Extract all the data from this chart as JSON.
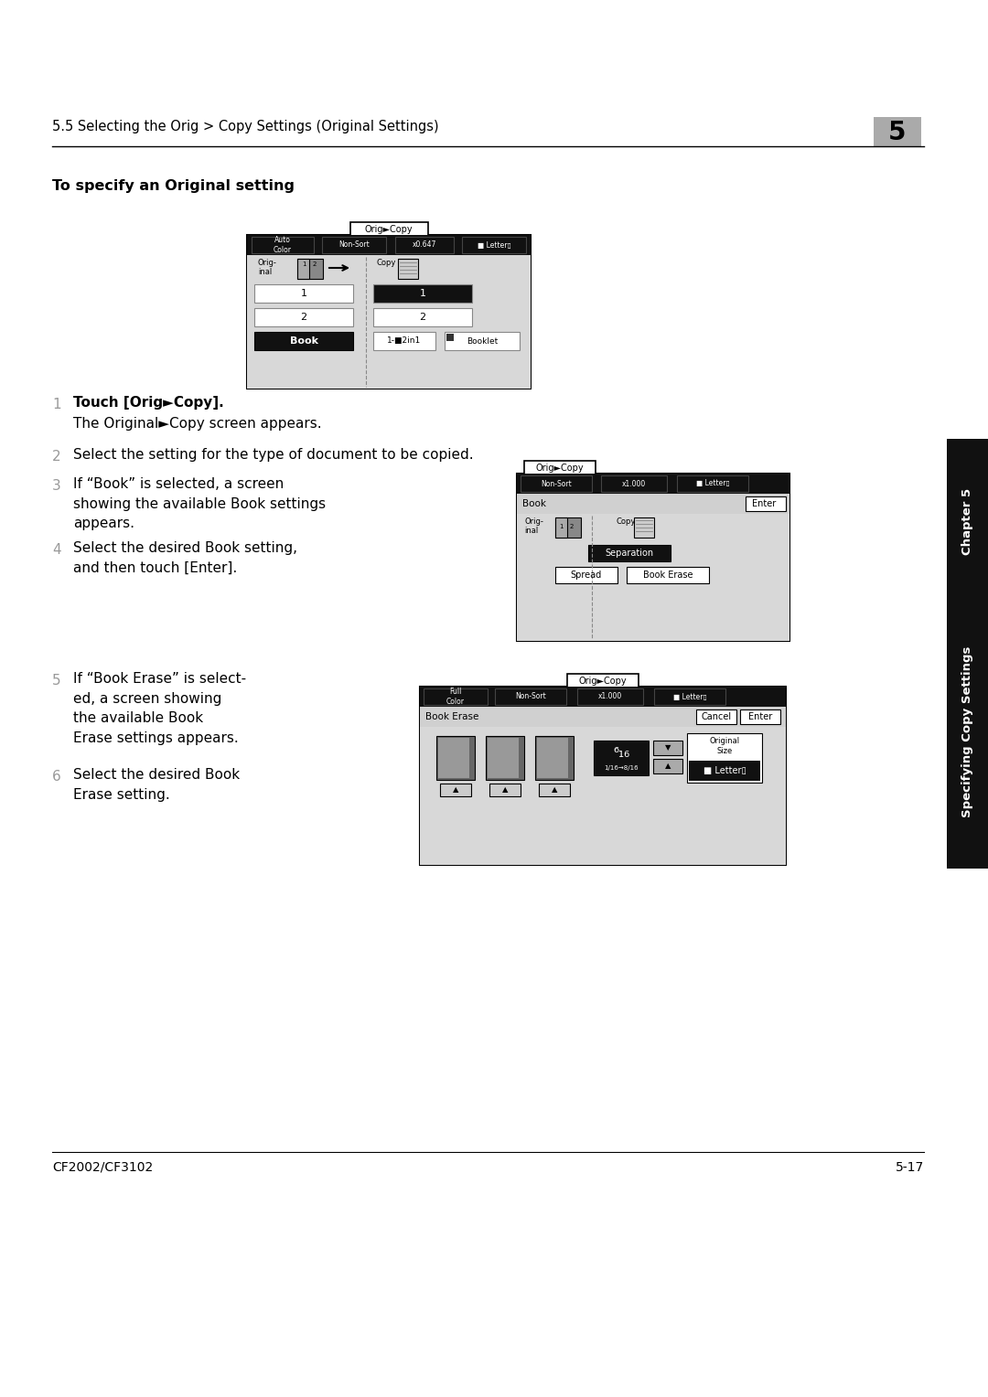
{
  "page_bg": "#ffffff",
  "header_text": "5.5 Selecting the Orig > Copy Settings (Original Settings)",
  "chapter_num": "5",
  "section_title": "To specify an Original setting",
  "step1_bold": "Touch [Orig►Copy].",
  "step1_sub": "The Original►Copy screen appears.",
  "step2": "Select the setting for the type of document to be copied.",
  "step3_text": "If “Book” is selected, a screen\nshowing the available Book settings\nappears.",
  "step4_text": "Select the desired Book setting,\nand then touch [Enter].",
  "step5_text": "If “Book Erase” is select-\ned, a screen showing\nthe available Book\nErase settings appears.",
  "step6_text": "Select the desired Book\nErase setting.",
  "footer_left": "CF2002/CF3102",
  "footer_right": "5-17",
  "sidebar_text": "Specifying Copy Settings",
  "sidebar_chapter": "Chapter 5"
}
